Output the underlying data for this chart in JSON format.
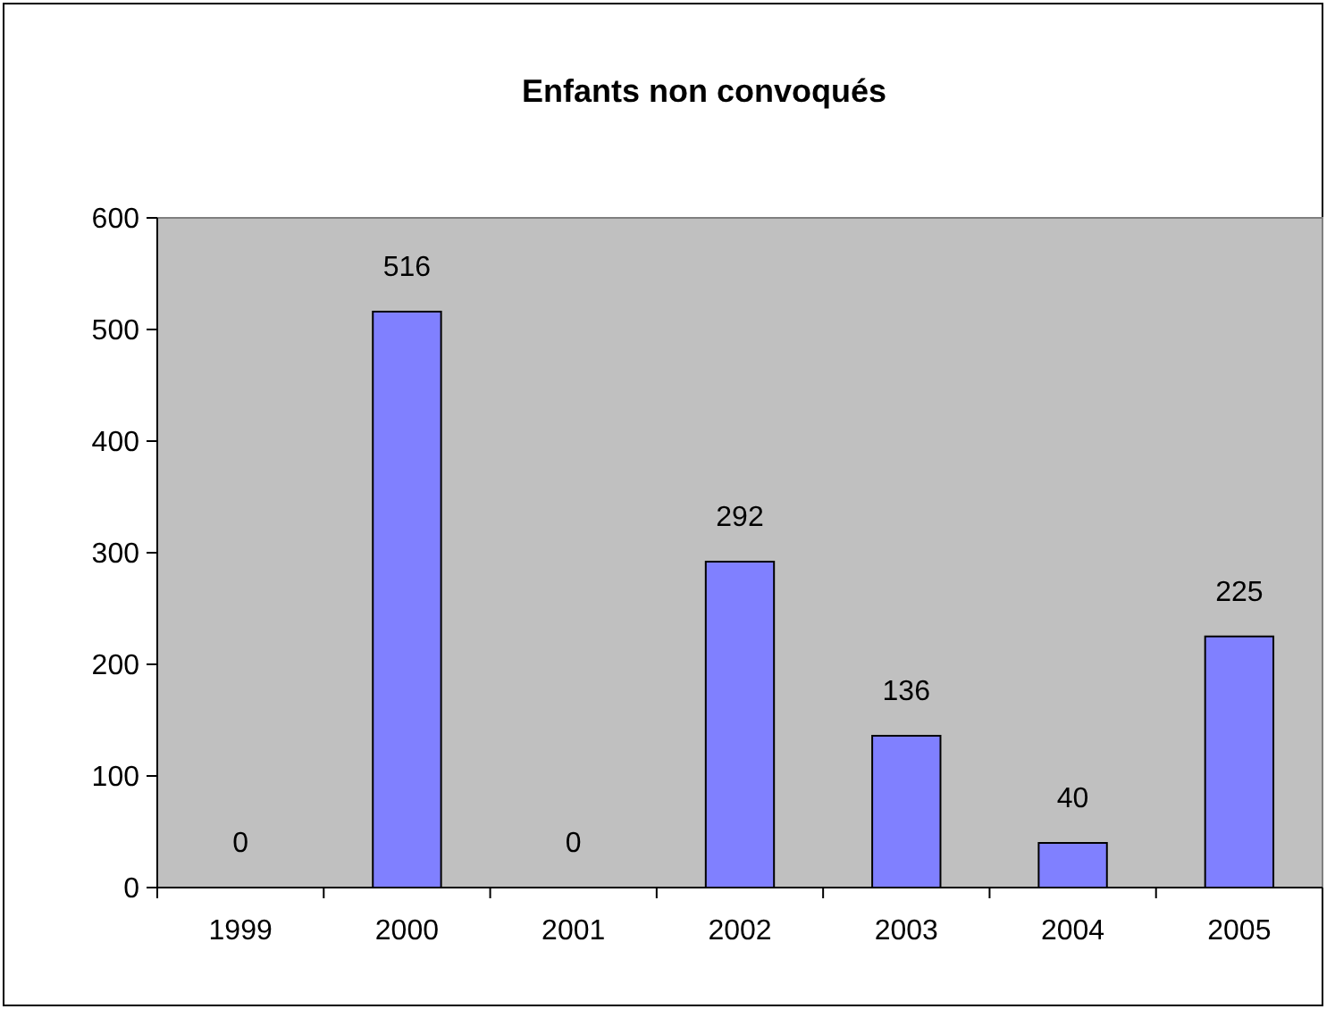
{
  "chart_data": {
    "type": "bar",
    "title": "Enfants non convoqués",
    "categories": [
      "1999",
      "2000",
      "2001",
      "2002",
      "2003",
      "2004",
      "2005"
    ],
    "values": [
      0,
      516,
      0,
      292,
      136,
      40,
      225
    ],
    "color": "#8080ff",
    "ylim": [
      0,
      600
    ],
    "yticks": [
      0,
      100,
      200,
      300,
      400,
      500,
      600
    ],
    "data_labels": true
  }
}
